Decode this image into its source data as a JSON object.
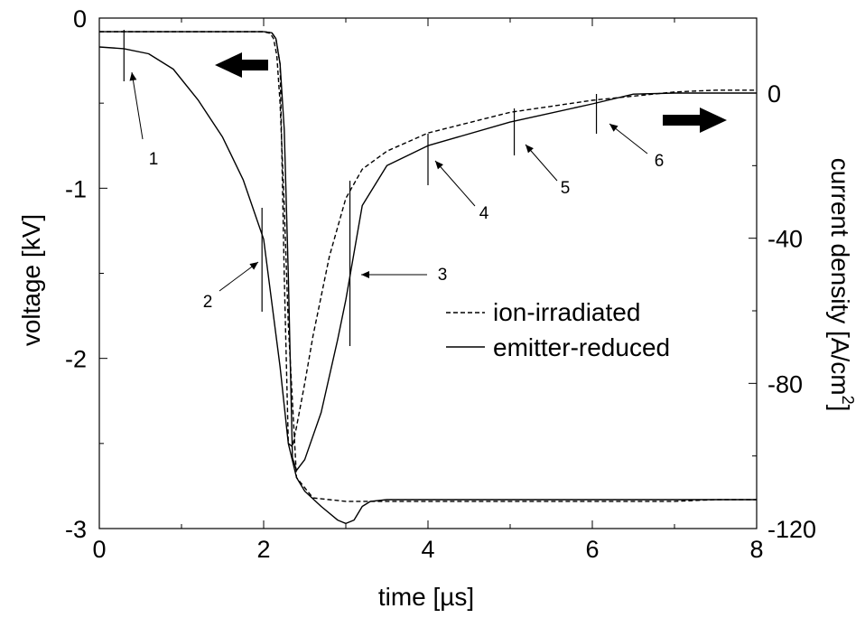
{
  "chart_data": {
    "type": "line",
    "xlabel": "time [µs]",
    "ylabel": "voltage [kV]",
    "y2label": "current density [A/cm",
    "y2label_sup": "2",
    "y2label_close": "]",
    "xlim": [
      0,
      8
    ],
    "ylim": [
      -3,
      0
    ],
    "y2lim": [
      -120,
      0
    ],
    "x_ticks": [
      0,
      2,
      4,
      6,
      8
    ],
    "y_ticks": [
      0,
      -1,
      -2,
      -3
    ],
    "y2_ticks": [
      0,
      -40,
      -80,
      -120
    ],
    "grid": false,
    "legend_position": "center-right",
    "series": [
      {
        "name": "ion-irradiated",
        "style": "dashed",
        "axis": "voltage",
        "x": [
          0,
          2.0,
          2.08,
          2.12,
          2.16,
          2.2,
          2.25,
          2.3,
          2.4,
          2.6,
          2.8,
          3.0,
          3.2,
          3.5,
          4.0,
          5.0,
          6.0,
          7.0,
          7.5,
          8.0
        ],
        "values": [
          -0.08,
          -0.08,
          -0.09,
          -0.12,
          -0.22,
          -0.5,
          -1.1,
          -1.8,
          -2.7,
          -2.82,
          -2.83,
          -2.84,
          -2.84,
          -2.84,
          -2.84,
          -2.84,
          -2.84,
          -2.84,
          -2.83,
          -2.83
        ]
      },
      {
        "name": "ion-irradiated",
        "style": "dashed",
        "axis": "current",
        "x": [
          0,
          2.0,
          2.1,
          2.15,
          2.2,
          2.25,
          2.3,
          2.35,
          2.4,
          2.5,
          2.6,
          2.8,
          3.0,
          3.2,
          3.5,
          4.0,
          5.0,
          6.0,
          7.0,
          7.5,
          8.0
        ],
        "values": [
          16.9,
          16.9,
          16.6,
          15.0,
          8.0,
          -50.0,
          -96.5,
          -97.5,
          -92.0,
          -80.0,
          -67.0,
          -45.0,
          -29.0,
          -21.0,
          -16.0,
          -11.0,
          -5.3,
          -2.0,
          0.3,
          0.8,
          0.8
        ]
      },
      {
        "name": "emitter-reduced",
        "style": "solid",
        "axis": "voltage",
        "x": [
          0,
          0.3,
          0.6,
          0.9,
          1.2,
          1.5,
          1.75,
          2.0,
          2.2,
          2.3,
          2.4,
          2.5,
          2.7,
          2.9,
          3.0,
          3.1,
          3.2,
          3.3,
          3.5,
          4.0,
          5.0,
          6.0,
          7.0,
          8.0
        ],
        "values": [
          -0.17,
          -0.18,
          -0.21,
          -0.3,
          -0.48,
          -0.7,
          -0.95,
          -1.3,
          -2.05,
          -2.5,
          -2.7,
          -2.78,
          -2.87,
          -2.95,
          -2.97,
          -2.95,
          -2.87,
          -2.84,
          -2.83,
          -2.83,
          -2.83,
          -2.83,
          -2.83,
          -2.83
        ]
      },
      {
        "name": "emitter-reduced",
        "style": "solid",
        "axis": "current",
        "x": [
          0,
          2.0,
          2.1,
          2.15,
          2.2,
          2.25,
          2.3,
          2.35,
          2.4,
          2.5,
          2.7,
          2.9,
          3.0,
          3.1,
          3.2,
          3.5,
          4.0,
          5.0,
          6.0,
          6.5,
          7.0,
          8.0
        ],
        "values": [
          16.9,
          16.9,
          16.6,
          15.0,
          8.0,
          -10.0,
          -50.0,
          -100.5,
          -104.0,
          -101.0,
          -88.0,
          -68.0,
          -57.0,
          -44.0,
          -31.0,
          -20.0,
          -14.5,
          -8.0,
          -3.0,
          -0.3,
          0.0,
          0.0
        ]
      }
    ],
    "markers": [
      {
        "label": "1",
        "x": 0.3
      },
      {
        "label": "2",
        "x": 1.98
      },
      {
        "label": "3",
        "x": 3.05
      },
      {
        "label": "4",
        "x": 4.0
      },
      {
        "label": "5",
        "x": 5.05
      },
      {
        "label": "6",
        "x": 6.05
      }
    ]
  }
}
